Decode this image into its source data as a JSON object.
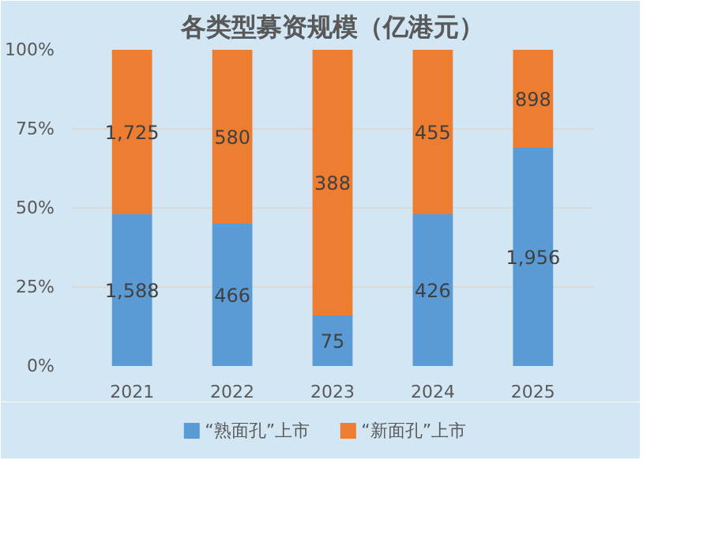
{
  "chart_data": {
    "type": "bar",
    "title": "各类型募资规模（亿港元）",
    "stacked": true,
    "categories": [
      "2021",
      "2022",
      "2023",
      "2024",
      "2025"
    ],
    "series": [
      {
        "name": "“熟面孔”上市",
        "color": "#5b9bd5",
        "values": [
          48,
          45,
          16,
          48,
          69
        ]
      },
      {
        "name": "“新面孔”上市",
        "color": "#ed7d31",
        "values": [
          52,
          55,
          84,
          52,
          31
        ]
      }
    ],
    "annotations": [
      "1,588",
      "466",
      "75",
      "426",
      "1,956",
      "1,725",
      "580",
      "388",
      "455",
      "898"
    ],
    "ylim": [
      0,
      100
    ],
    "yticks": [
      {
        "value": 0,
        "label": "0%"
      },
      {
        "value": 25,
        "label": "25%"
      },
      {
        "value": 50,
        "label": "50%"
      },
      {
        "value": 75,
        "label": "75%"
      },
      {
        "value": 100,
        "label": "100%"
      }
    ],
    "grid": "y",
    "legend": "bottom"
  }
}
